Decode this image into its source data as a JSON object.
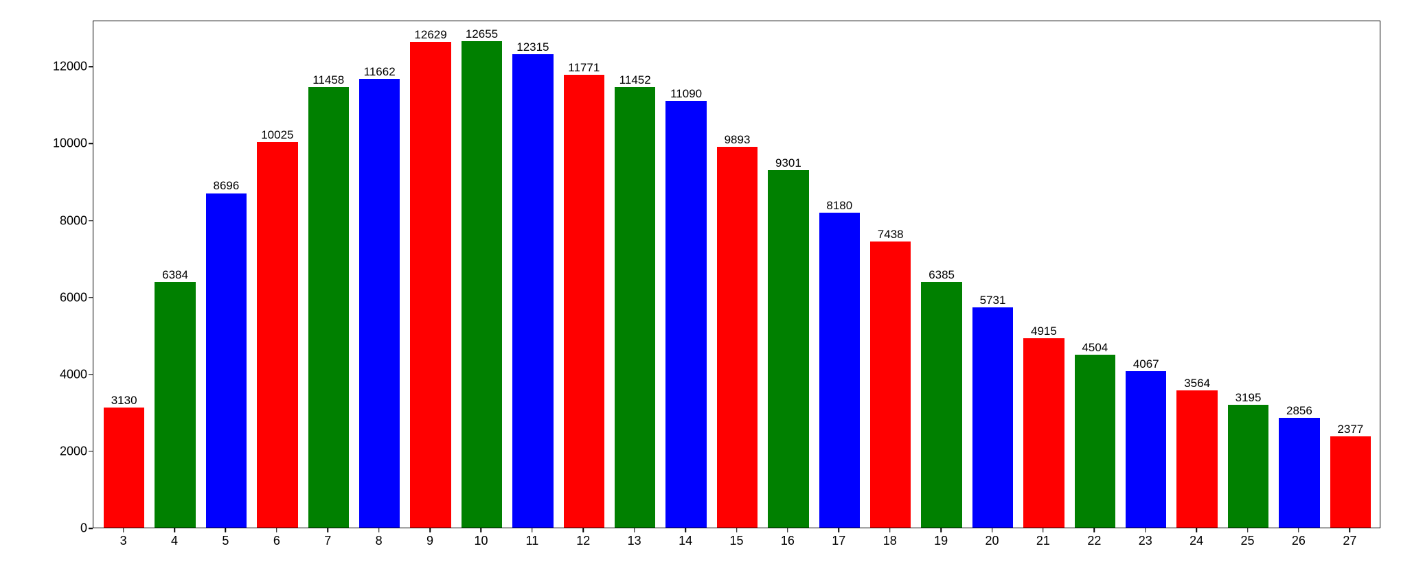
{
  "chart": {
    "type": "bar",
    "background_color": "#ffffff",
    "border_color": "#000000",
    "categories": [
      "3",
      "4",
      "5",
      "6",
      "7",
      "8",
      "9",
      "10",
      "11",
      "12",
      "13",
      "14",
      "15",
      "16",
      "17",
      "18",
      "19",
      "20",
      "21",
      "22",
      "23",
      "24",
      "25",
      "26",
      "27"
    ],
    "values": [
      3130,
      6384,
      8696,
      10025,
      11458,
      11662,
      12629,
      12655,
      12315,
      11771,
      11452,
      11090,
      9893,
      9301,
      8180,
      7438,
      6385,
      5731,
      4915,
      4504,
      4067,
      3564,
      3195,
      2856,
      2377
    ],
    "bar_colors": [
      "#ff0000",
      "#008000",
      "#0000ff",
      "#ff0000",
      "#008000",
      "#0000ff",
      "#ff0000",
      "#008000",
      "#0000ff",
      "#ff0000",
      "#008000",
      "#0000ff",
      "#ff0000",
      "#008000",
      "#0000ff",
      "#ff0000",
      "#008000",
      "#0000ff",
      "#ff0000",
      "#008000",
      "#0000ff",
      "#ff0000",
      "#008000",
      "#0000ff",
      "#ff0000"
    ],
    "ylim": [
      0,
      13200
    ],
    "yticks": [
      0,
      2000,
      4000,
      6000,
      8000,
      10000,
      12000
    ],
    "xlim_padding": 0.6,
    "bar_width": 0.8,
    "tick_fontsize": 18,
    "label_fontsize": 17,
    "text_color": "#000000"
  }
}
